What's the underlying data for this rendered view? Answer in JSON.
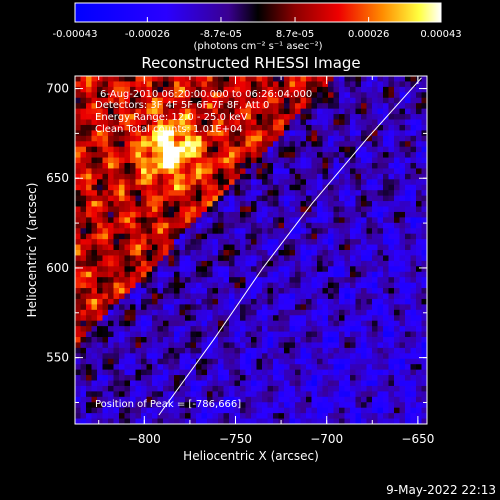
{
  "colorbar": {
    "tick_labels": [
      "-0.00043",
      "-0.00026",
      "-8.7e-05",
      "8.7e-05",
      "0.00026",
      "0.00043"
    ],
    "tick_values": [
      -0.00043,
      -0.00026,
      -8.7e-05,
      8.7e-05,
      0.00026,
      0.00043
    ],
    "range": [
      -0.00043,
      0.00043
    ],
    "unit_label": "(photons cm⁻² s⁻¹ asec⁻²)"
  },
  "chart_data": {
    "type": "heatmap",
    "title": "Reconstructed RHESSI Image",
    "xlabel": "Heliocentric X (arcsec)",
    "ylabel": "Heliocentric Y (arcsec)",
    "xlim": [
      -838,
      -645
    ],
    "ylim": [
      513,
      707
    ],
    "x_ticks": [
      -800,
      -750,
      -700,
      -650
    ],
    "x_tick_labels": [
      "−800",
      "−750",
      "−700",
      "−650"
    ],
    "y_ticks": [
      550,
      600,
      650,
      700
    ],
    "y_tick_labels": [
      "550",
      "600",
      "650",
      "700"
    ],
    "limb_line": [
      [
        -792,
        518
      ],
      [
        -762,
        560
      ],
      [
        -735,
        600
      ],
      [
        -708,
        636
      ],
      [
        -678,
        672
      ],
      [
        -648,
        706
      ]
    ],
    "annotations": [
      "6-Aug-2010 06:20:00.000 to 06:26:04.000",
      "Detectors: 3F 4F 5F 6F 7F 8F, Att 0",
      "Energy Range: 12.0 - 25.0 keV",
      "Clean     Total counts: 1.01E+04"
    ],
    "peak_label": "Position of Peak = [-786,666]",
    "peak": [
      -786,
      666
    ],
    "colors": {
      "low": "#0000ff",
      "mid_low": "#000000",
      "mid": "#8b0000",
      "high": "#ff8c00",
      "max": "#ffffff"
    }
  },
  "footer": {
    "timestamp": "9-May-2022 22:13"
  }
}
